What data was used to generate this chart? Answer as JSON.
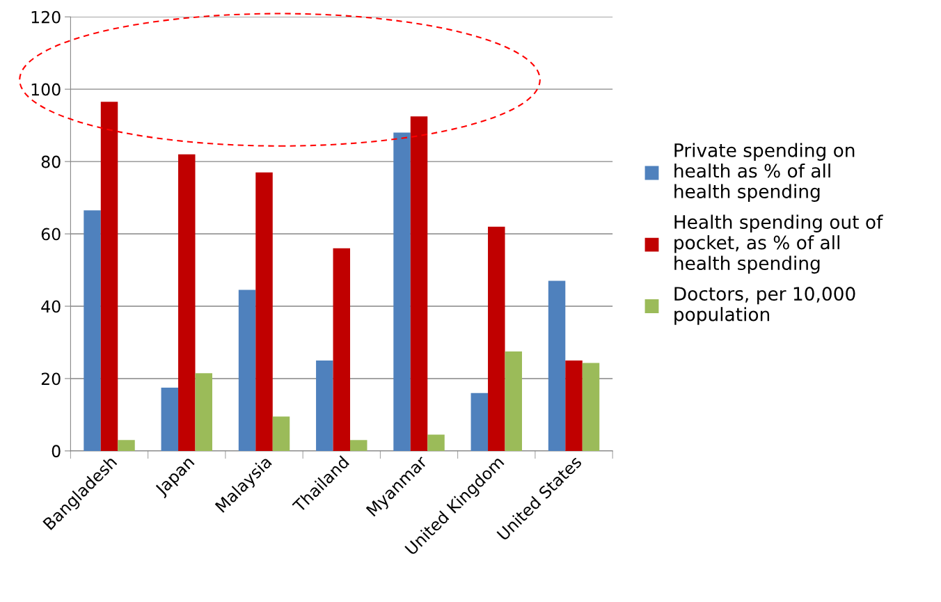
{
  "chart_data": {
    "type": "bar",
    "categories": [
      "Bangladesh",
      "Japan",
      "Malaysia",
      "Thailand",
      "Myanmar",
      "United Kingdom",
      "United States"
    ],
    "series": [
      {
        "name": "Private spending on health as % of all health spending",
        "color": "#4f81bd",
        "values": [
          66.5,
          17.5,
          44.5,
          25,
          88,
          16,
          47
        ]
      },
      {
        "name": "Health spending out of pocket, as % of all health spending",
        "color": "#c00000",
        "values": [
          96.5,
          82,
          77,
          56,
          92.5,
          62,
          25
        ]
      },
      {
        "name": "Doctors, per 10,000 population",
        "color": "#9bbb59",
        "values": [
          3,
          21.5,
          9.5,
          3,
          4.5,
          27.5,
          24.3
        ]
      }
    ],
    "ylim": [
      0,
      120
    ],
    "yticks": [
      0,
      20,
      40,
      60,
      80,
      100,
      120
    ],
    "grid": "y",
    "legend": "right"
  }
}
